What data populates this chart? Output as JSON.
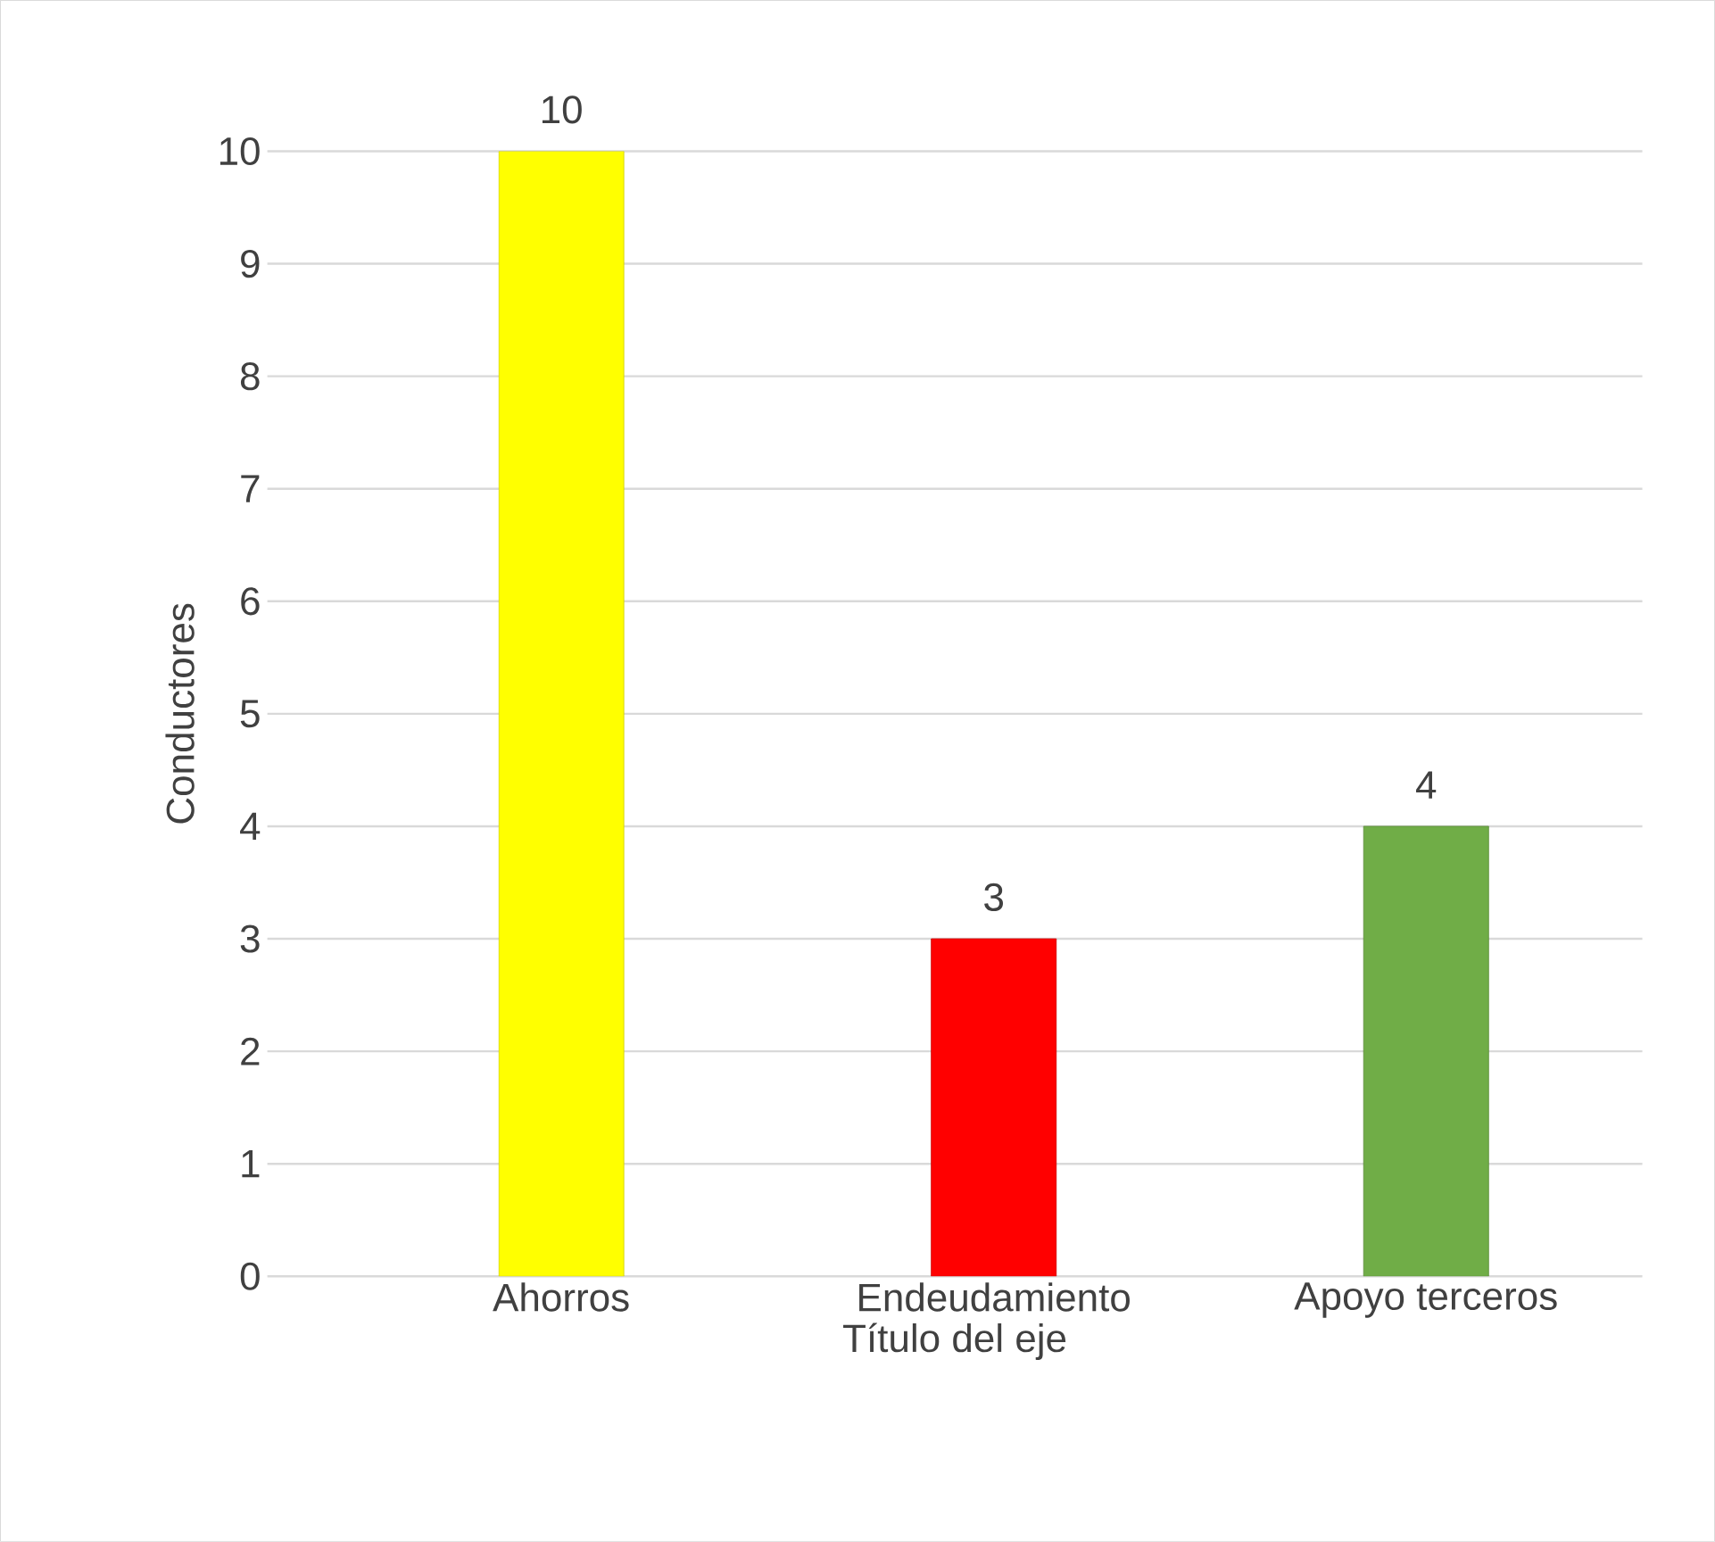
{
  "chart_data": {
    "type": "bar",
    "xlabel": "Título del eje",
    "ylabel": "Conductores",
    "categories": [
      "Ahorros",
      "Endeudamiento",
      "Apoyo terceros"
    ],
    "values": [
      10,
      3,
      4
    ],
    "colors": [
      "#ffff00",
      "#ff0000",
      "#70ad47"
    ],
    "ylim": [
      0,
      10
    ],
    "yticks": [
      0,
      1,
      2,
      3,
      4,
      5,
      6,
      7,
      8,
      9,
      10
    ],
    "grid": "y",
    "data_labels": true
  }
}
